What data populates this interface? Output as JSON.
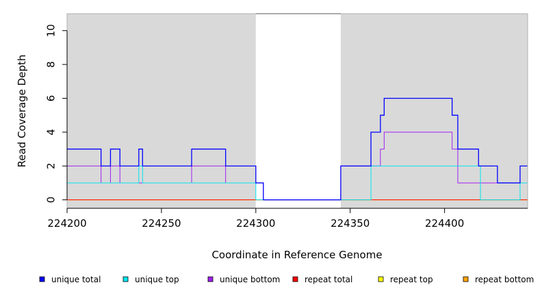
{
  "chart_data": {
    "type": "line",
    "step": true,
    "xlabel": "Coordinate in Reference Genome",
    "ylabel": "Read Coverage Depth",
    "xlim": [
      224200,
      224444
    ],
    "ylim": [
      -0.5,
      11
    ],
    "x_ticks": [
      224200,
      224250,
      224300,
      224350,
      224400
    ],
    "y_ticks": [
      0,
      2,
      4,
      6,
      8,
      10
    ],
    "shaded_regions": [
      {
        "x_start": 224200,
        "x_end": 224300,
        "color": "#d9d9d9"
      },
      {
        "x_start": 224345,
        "x_end": 224444,
        "color": "#d9d9d9"
      }
    ],
    "series": [
      {
        "name": "unique total",
        "color": "#0000ff",
        "x": [
          224200,
          224218,
          224223,
          224228,
          224238,
          224240,
          224266,
          224284,
          224300,
          224304,
          224345,
          224361,
          224366,
          224368,
          224404,
          224407,
          224418,
          224428,
          224440,
          224444
        ],
        "y": [
          3,
          2,
          3,
          2,
          3,
          2,
          3,
          2,
          1,
          0,
          2,
          4,
          5,
          6,
          5,
          3,
          2,
          1,
          2,
          2
        ]
      },
      {
        "name": "unique top",
        "color": "#00e5ee",
        "x": [
          224200,
          224238,
          224240,
          224300,
          224345,
          224361,
          224419,
          224440,
          224444
        ],
        "y": [
          1,
          2,
          1,
          0,
          0,
          2,
          0,
          1,
          1
        ]
      },
      {
        "name": "unique bottom",
        "color": "#a020f0",
        "x": [
          224200,
          224218,
          224223,
          224228,
          224266,
          224284,
          224300,
          224304,
          224345,
          224361,
          224366,
          224368,
          224404,
          224407,
          224418,
          224444
        ],
        "y": [
          2,
          1,
          2,
          1,
          2,
          1,
          1,
          0,
          2,
          2,
          3,
          4,
          3,
          1,
          1,
          1
        ]
      },
      {
        "name": "repeat total",
        "color": "#ff0000",
        "x": [
          224200,
          224444
        ],
        "y": [
          0,
          0
        ]
      },
      {
        "name": "repeat top",
        "color": "#ffff00",
        "x": [
          224200,
          224444
        ],
        "y": [
          0,
          0
        ]
      },
      {
        "name": "repeat bottom",
        "color": "#ffa500",
        "x": [
          224200,
          224444
        ],
        "y": [
          0,
          0
        ]
      }
    ]
  }
}
